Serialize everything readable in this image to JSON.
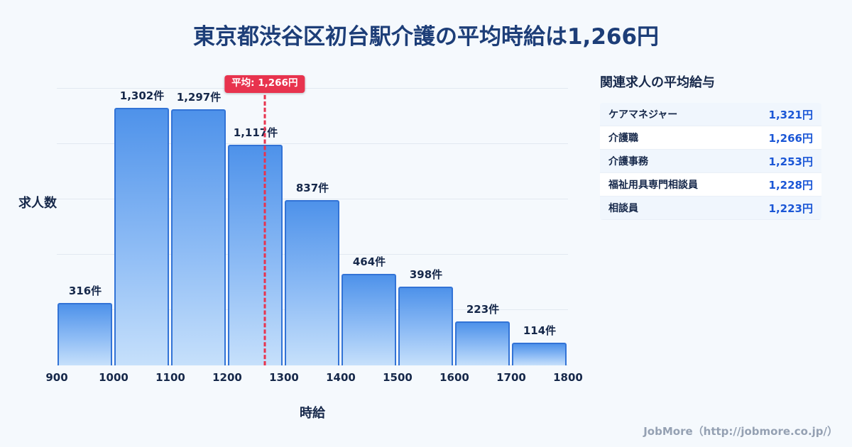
{
  "page": {
    "title": "東京都渋谷区初台駅介護の平均時給は1,266円",
    "footer": "JobMore（http://jobmore.co.jp/）"
  },
  "chart_data": {
    "type": "bar",
    "title": "東京都渋谷区初台駅介護の平均時給は1,266円",
    "xlabel": "時給",
    "ylabel": "求人数",
    "x_ticks": [
      "900",
      "1000",
      "1100",
      "1200",
      "1300",
      "1400",
      "1500",
      "1600",
      "1700",
      "1800"
    ],
    "categories": [
      "900-1000",
      "1000-1100",
      "1100-1200",
      "1200-1300",
      "1300-1400",
      "1400-1500",
      "1500-1600",
      "1600-1700",
      "1700-1800"
    ],
    "values": [
      316,
      1302,
      1297,
      1117,
      837,
      464,
      398,
      223,
      114
    ],
    "bar_labels": [
      "316件",
      "1,302件",
      "1,297件",
      "1,117件",
      "837件",
      "464件",
      "398件",
      "223件",
      "114件"
    ],
    "average": 1266,
    "average_label": "平均: 1,266円",
    "ylim": [
      0,
      1400
    ],
    "grid": true,
    "colors": {
      "bar_gradient_top": "#4e92ea",
      "bar_gradient_mid": "#8ebcf5",
      "bar_gradient_bottom": "#c6e0fb",
      "bar_border": "#3273d6",
      "average_line": "#e8334e",
      "value_text": "#1a56d6",
      "title_text": "#1d3e78"
    }
  },
  "side_panel": {
    "heading": "関連求人の平均給与",
    "rows": [
      {
        "label": "ケアマネジャー",
        "value": "1,321円"
      },
      {
        "label": "介護職",
        "value": "1,266円"
      },
      {
        "label": "介護事務",
        "value": "1,253円"
      },
      {
        "label": "福祉用具専門相談員",
        "value": "1,228円"
      },
      {
        "label": "相談員",
        "value": "1,223円"
      }
    ]
  }
}
